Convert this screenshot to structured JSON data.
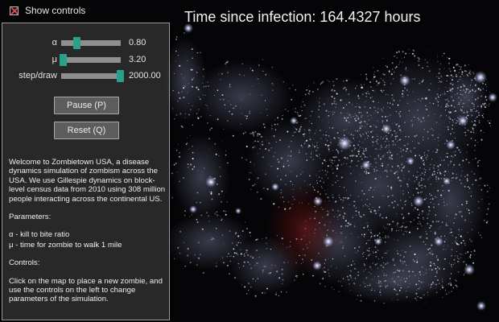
{
  "header": {
    "show_controls_label": "Show controls",
    "title": "Time since infection: 164.4327 hours"
  },
  "controls": {
    "sliders": [
      {
        "label": "α",
        "value_text": "0.80",
        "level": 0.25
      },
      {
        "label": "μ",
        "value_text": "3.20",
        "level": 0.03
      },
      {
        "label": "step/draw",
        "value_text": "2000.00",
        "level": 0.98
      }
    ],
    "pause_label": "Pause (P)",
    "reset_label": "Reset (Q)"
  },
  "description": {
    "intro": "Welcome to Zombietown USA, a disease dynamics simulation of zombism across the USA. We use Gillespie dynamics on block-level census data from 2010 using 308 million people interacting across the continental US.",
    "params_heading": "Parameters:",
    "param_alpha": "α - kill to bite ratio",
    "param_mu": "μ - time for zombie to walk 1 mile",
    "controls_heading": "Controls:",
    "controls_text": "Click on the map to place a new zombie, and use the controls on the left to change parameters of the simulation."
  },
  "colors": {
    "background": "#050507",
    "panel_border": "#9a9a9a",
    "slider_thumb": "#2aa08a",
    "infection": "#7a1414",
    "city_lights": "#d8dcff"
  },
  "icons": {
    "checkbox": "checkbox-checked-x-icon"
  }
}
